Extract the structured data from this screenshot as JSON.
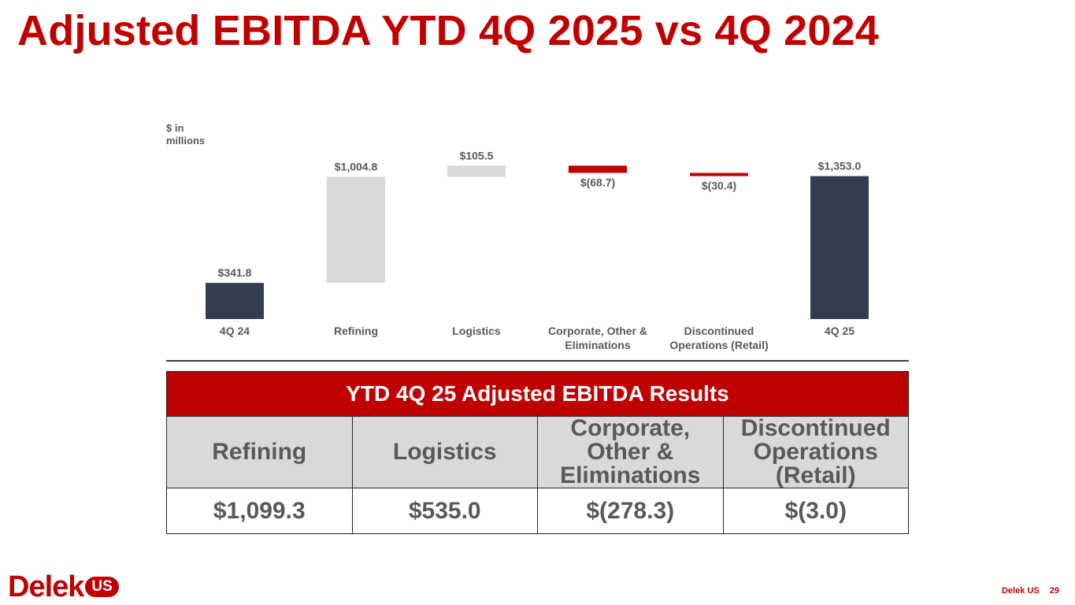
{
  "title": "Adjusted EBITDA YTD 4Q 2025 vs 4Q 2024",
  "unit_label": "$ in millions",
  "colors": {
    "accent": "#c00000",
    "total_bar": "#323d4f",
    "increase_bar": "#d9d9d9",
    "decrease_bar": "#c00000",
    "text": "#595959"
  },
  "chart_data": {
    "type": "bar",
    "subtype": "waterfall",
    "categories": [
      "4Q 24",
      "Refining",
      "Logistics",
      "Corporate, Other & Eliminations",
      "Discontinued Operations (Retail)",
      "4Q 25"
    ],
    "category_lines": [
      [
        "4Q 24"
      ],
      [
        "Refining"
      ],
      [
        "Logistics"
      ],
      [
        "Corporate, Other &",
        "Eliminations"
      ],
      [
        "Discontinued",
        "Operations (Retail)"
      ],
      [
        "4Q 25"
      ]
    ],
    "values": [
      341.8,
      1004.8,
      105.5,
      -68.7,
      -30.4,
      1353.0
    ],
    "kinds": [
      "total",
      "increase",
      "increase",
      "decrease",
      "decrease",
      "total"
    ],
    "labels": [
      "$341.8",
      "$1,004.8",
      "$105.5",
      "$(68.7)",
      "$(30.4)",
      "$1,353.0"
    ],
    "ylabel": "$ in millions",
    "grid": false,
    "legend": "none"
  },
  "table": {
    "header": "YTD 4Q 25 Adjusted EBITDA Results",
    "columns": [
      {
        "lines": [
          "Refining"
        ]
      },
      {
        "lines": [
          "Logistics"
        ]
      },
      {
        "lines": [
          "Corporate,",
          "Other &",
          "Eliminations"
        ]
      },
      {
        "lines": [
          "Discontinued",
          "Operations",
          "(Retail)"
        ]
      }
    ],
    "values": [
      "$1,099.3",
      "$535.0",
      "$(278.3)",
      "$(3.0)"
    ]
  },
  "logo": {
    "word": "Delek",
    "badge": "US"
  },
  "footer": {
    "company": "Delek US",
    "page": "29"
  }
}
